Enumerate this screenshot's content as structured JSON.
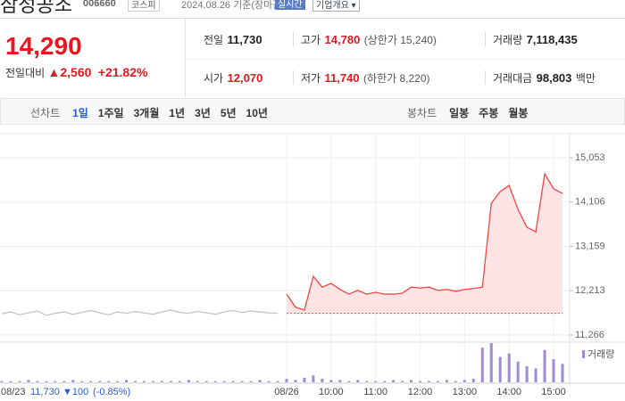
{
  "header": {
    "name": "삼성공조",
    "code": "006660",
    "market": "코스피",
    "date": "2024.08.26 기준(장마감)",
    "realtime": "실시간",
    "company": "기업개요"
  },
  "quote": {
    "price": "14,290",
    "change_label": "전일대비",
    "change": "2,560",
    "change_rate": "+21.82%"
  },
  "stats": [
    {
      "label": "전일",
      "value": "11,730"
    },
    {
      "label": "고가",
      "value": "14,780",
      "note": "(상한가 15,240)"
    },
    {
      "label": "거래량",
      "value": "7,118,435"
    },
    {
      "label": "시가",
      "value": "12,070"
    },
    {
      "label": "저가",
      "value": "11,740",
      "note": "(하한가 8,220)"
    },
    {
      "label": "거래대금",
      "value": "98,803",
      "unit": "백만"
    }
  ],
  "tabs": {
    "line": "선차트",
    "line_periods": [
      "1일",
      "1주일",
      "3개월",
      "1년",
      "3년",
      "5년",
      "10년"
    ],
    "candle": "봉차트",
    "candle_periods": [
      "일봉",
      "주봉",
      "월봉"
    ]
  },
  "chart_data": {
    "type": "line",
    "categories": [
      "08/23",
      null,
      null,
      null,
      null,
      null,
      null,
      null,
      null,
      null,
      null,
      null,
      null,
      null,
      null,
      null,
      null,
      null,
      null,
      null,
      null,
      null,
      null,
      null,
      null,
      null,
      null,
      null,
      null,
      null,
      null,
      null,
      "08/26",
      null,
      null,
      null,
      null,
      "10:00",
      null,
      null,
      null,
      null,
      "11:00",
      null,
      null,
      null,
      null,
      "12:00",
      null,
      null,
      null,
      null,
      "13:00",
      null,
      null,
      null,
      null,
      "14:00",
      null,
      null,
      null,
      null,
      "15:00",
      null
    ],
    "series": [
      {
        "color": "#c4c4c4",
        "values": [
          11720,
          11760,
          11700,
          11740,
          11780,
          11690,
          11730,
          11760,
          11710,
          11750,
          11790,
          11740,
          11700,
          11760,
          11730,
          11770,
          11740,
          11710,
          11760,
          11800,
          11750,
          11730,
          11770,
          11740,
          11710,
          11760,
          11790,
          11750,
          11780,
          11760,
          11740,
          11730,
          null,
          null,
          null,
          null,
          null,
          null,
          null,
          null,
          null,
          null,
          null,
          null,
          null,
          null,
          null,
          null,
          null,
          null,
          null,
          null,
          null,
          null,
          null,
          null,
          null,
          null,
          null,
          null,
          null,
          null,
          null,
          null
        ]
      },
      {
        "color": "#f04545",
        "fill": "#fde4e4",
        "values": [
          null,
          null,
          null,
          null,
          null,
          null,
          null,
          null,
          null,
          null,
          null,
          null,
          null,
          null,
          null,
          null,
          null,
          null,
          null,
          null,
          null,
          null,
          null,
          null,
          null,
          null,
          null,
          null,
          null,
          null,
          null,
          null,
          12140,
          11860,
          11800,
          12520,
          12290,
          12370,
          12240,
          12140,
          12220,
          12140,
          12180,
          12140,
          12140,
          12160,
          12290,
          12270,
          12290,
          12220,
          12240,
          12200,
          12240,
          12260,
          12290,
          14080,
          14330,
          14460,
          13950,
          13570,
          13470,
          14710,
          14390,
          14290
        ]
      }
    ],
    "reference": 11730,
    "ylim": [
      11152,
      15377
    ],
    "yticks": [
      {
        "value": 11266,
        "label": "11,266"
      },
      {
        "value": 12213,
        "label": "12,213"
      },
      {
        "value": 13159,
        "label": "13,159"
      },
      {
        "value": 14106,
        "label": "14,106"
      },
      {
        "value": 15053,
        "label": "15,053"
      }
    ],
    "grid": true,
    "volume": {
      "name": "거래량",
      "color": "#9f8ad8",
      "values": [
        1,
        1,
        1,
        2,
        1,
        1,
        1,
        1,
        2,
        1,
        1,
        1,
        1,
        1,
        2,
        1,
        1,
        1,
        1,
        1,
        1,
        2,
        1,
        1,
        1,
        1,
        1,
        1,
        1,
        2,
        1,
        1,
        3,
        2,
        4,
        6,
        3,
        2,
        2,
        1,
        2,
        1,
        1,
        1,
        2,
        1,
        2,
        1,
        1,
        1,
        2,
        1,
        2,
        3,
        30,
        34,
        22,
        25,
        18,
        14,
        12,
        28,
        20,
        16
      ]
    },
    "footer": {
      "price": "11,730",
      "change": "▼100",
      "rate": "(-0.85%)"
    }
  }
}
